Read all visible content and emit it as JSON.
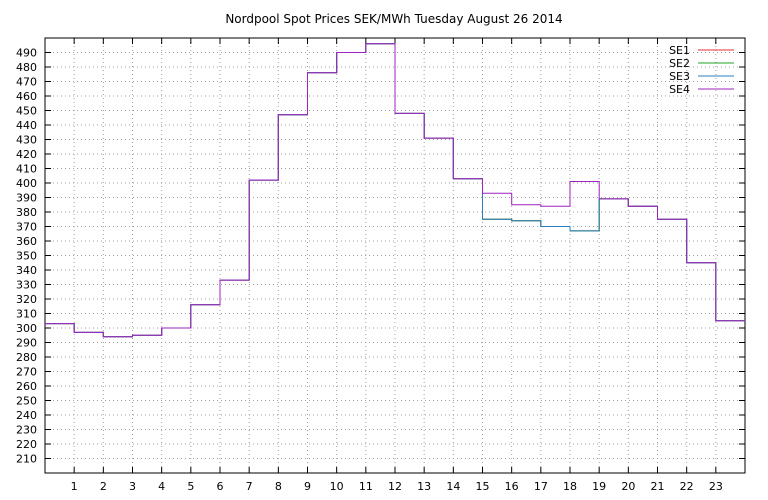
{
  "chart_data": {
    "type": "line",
    "step": true,
    "title": "Nordpool Spot Prices SEK/MWh Tuesday August 26 2014",
    "xlabel": "",
    "ylabel": "",
    "x": [
      0,
      1,
      2,
      3,
      4,
      5,
      6,
      7,
      8,
      9,
      10,
      11,
      12,
      13,
      14,
      15,
      16,
      17,
      18,
      19,
      20,
      21,
      22,
      23
    ],
    "x_tick_labels": [
      "1",
      "2",
      "3",
      "4",
      "5",
      "6",
      "7",
      "8",
      "9",
      "10",
      "11",
      "12",
      "13",
      "14",
      "15",
      "16",
      "17",
      "18",
      "19",
      "20",
      "21",
      "22",
      "23"
    ],
    "xlim": [
      0,
      24
    ],
    "ylim": [
      200,
      500
    ],
    "y_ticks": [
      210,
      220,
      230,
      240,
      250,
      260,
      270,
      280,
      290,
      300,
      310,
      320,
      330,
      340,
      350,
      360,
      370,
      380,
      390,
      400,
      410,
      420,
      430,
      440,
      450,
      460,
      470,
      480,
      490
    ],
    "grid": true,
    "legend_position": "top-right",
    "series": [
      {
        "name": "SE1",
        "color": "#e03030",
        "values": [
          303,
          297,
          294,
          295,
          300,
          316,
          333,
          402,
          447,
          476,
          490,
          496,
          448,
          431,
          403,
          375,
          374,
          370,
          367,
          389,
          384,
          375,
          345,
          305
        ]
      },
      {
        "name": "SE2",
        "color": "#20a020",
        "values": [
          303,
          297,
          294,
          295,
          300,
          316,
          333,
          402,
          447,
          476,
          490,
          496,
          448,
          431,
          403,
          375,
          374,
          370,
          367,
          389,
          384,
          375,
          345,
          305
        ]
      },
      {
        "name": "SE3",
        "color": "#2a7fc0",
        "values": [
          303,
          297,
          294,
          295,
          300,
          316,
          333,
          402,
          447,
          476,
          490,
          496,
          448,
          431,
          403,
          375,
          374,
          370,
          367,
          389,
          384,
          375,
          345,
          305
        ]
      },
      {
        "name": "SE4",
        "color": "#a020c0",
        "values": [
          303,
          297,
          294,
          295,
          300,
          316,
          333,
          402,
          447,
          476,
          490,
          496,
          448,
          431,
          403,
          393,
          385,
          384,
          401,
          389,
          384,
          375,
          345,
          305
        ]
      }
    ]
  }
}
